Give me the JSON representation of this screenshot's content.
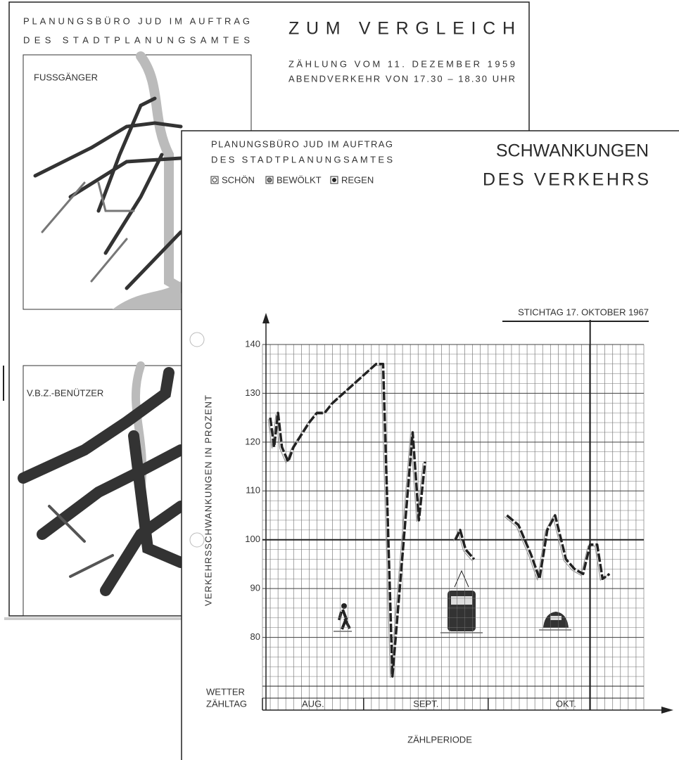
{
  "back_sheet": {
    "header": [
      "PLANUNGSBÜRO JUD IM AUFTRAG",
      "DES STADTPLANUNGSAMTES"
    ],
    "title": "ZUM VERGLEICH",
    "subtitle": [
      "ZÄHLUNG VOM 11. DEZEMBER 1959",
      "ABENDVERKEHR VON 17.30 – 18.30 UHR"
    ],
    "maps": [
      "FUSSGÄNGER",
      "V.B.Z.-BENÜTZER"
    ]
  },
  "front_sheet": {
    "header": [
      "PLANUNGSBÜRO JUD IM AUFTRAG",
      "DES STADTPLANUNGSAMTES"
    ],
    "legend": [
      "SCHÖN",
      "BEWÖLKT",
      "REGEN"
    ],
    "title": [
      "SCHWANKUNGEN",
      "DES VERKEHRS"
    ]
  },
  "chart_data": {
    "type": "line",
    "y_label": "VERKEHRSSCHWANKUNGEN IN PROZENT",
    "x_label": "ZÄHLPERIODE",
    "annotation": "STICHTAG 17. OKTOBER 1967",
    "reference_x": 42.1,
    "reference_y": 100,
    "row_labels": [
      "WETTER",
      "ZÄHLTAG"
    ],
    "months": [
      {
        "label": "AUG.",
        "start": 0,
        "end": 13
      },
      {
        "label": "SEPT.",
        "start": 13,
        "end": 29
      },
      {
        "label": "OKT.",
        "start": 29,
        "end": 49
      }
    ],
    "xlim": [
      0,
      49
    ],
    "ylim": [
      70,
      140
    ],
    "yticks": [
      80,
      90,
      100,
      110,
      120,
      130,
      140
    ],
    "grid": true,
    "x": [
      1,
      1.5,
      2,
      2.5,
      3.3,
      4,
      6,
      7,
      8,
      9,
      14.6,
      15.5,
      16.7,
      19.3,
      20.1,
      20.9,
      23,
      24.8,
      25.4,
      26.1,
      27.2,
      29,
      31.4,
      32.9,
      34.5,
      35.6,
      36.6,
      37.6,
      39,
      40.1,
      41.2,
      42.1,
      43,
      43.7,
      44.6
    ],
    "series": [
      {
        "name": "Verkehr",
        "color": "#222222",
        "values": [
          125,
          119,
          126,
          119,
          116,
          119,
          124,
          126,
          126,
          128,
          136,
          136,
          72,
          122,
          104,
          116,
          null,
          100,
          102,
          98,
          96,
          null,
          105,
          103,
          97,
          92,
          102,
          105,
          96,
          94,
          93,
          99,
          99,
          92,
          93
        ]
      }
    ]
  }
}
